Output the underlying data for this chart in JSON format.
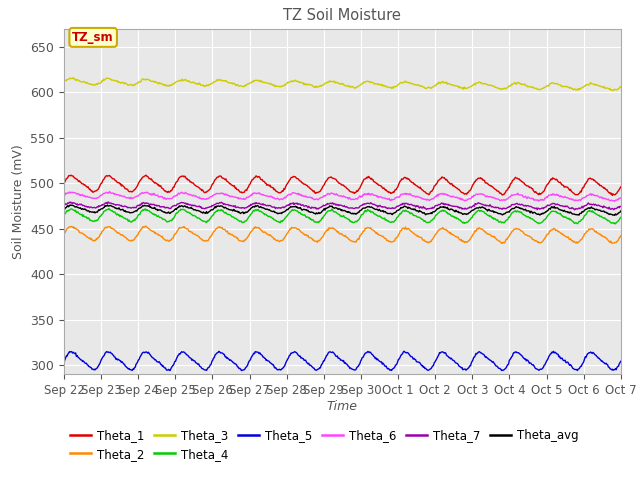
{
  "title": "TZ Soil Moisture",
  "ylabel": "Soil Moisture (mV)",
  "xlabel": "Time",
  "ylim": [
    290,
    670
  ],
  "yticks": [
    300,
    350,
    400,
    450,
    500,
    550,
    600,
    650
  ],
  "bg_color": "#e8e8e8",
  "annotation_text": "TZ_sm",
  "annotation_bg": "#ffffcc",
  "annotation_border": "#ccaa00",
  "annotation_text_color": "#cc0000",
  "series": {
    "Theta_1": {
      "color": "#dd0000",
      "base": 500,
      "amp": 8,
      "trend": -0.025
    },
    "Theta_2": {
      "color": "#ff8800",
      "base": 445,
      "amp": 7,
      "trend": -0.02
    },
    "Theta_3": {
      "color": "#cccc00",
      "base": 612,
      "amp": 3,
      "trend": -0.04
    },
    "Theta_4": {
      "color": "#00cc00",
      "base": 465,
      "amp": 6,
      "trend": -0.015
    },
    "Theta_5": {
      "color": "#0000dd",
      "base": 305,
      "amp": 9,
      "trend": -0.003
    },
    "Theta_6": {
      "color": "#ff44ff",
      "base": 487,
      "amp": 3,
      "trend": -0.018
    },
    "Theta_7": {
      "color": "#9900aa",
      "base": 476,
      "amp": 2.5,
      "trend": -0.01
    },
    "Theta_avg": {
      "color": "#000000",
      "base": 472,
      "amp": 3.5,
      "trend": -0.018
    }
  },
  "n_days": 15,
  "samples_per_day": 48,
  "x_tick_labels": [
    "Sep 22",
    "Sep 23",
    "Sep 24",
    "Sep 25",
    "Sep 26",
    "Sep 27",
    "Sep 28",
    "Sep 29",
    "Sep 30",
    "Oct 1",
    "Oct 2",
    "Oct 3",
    "Oct 4",
    "Oct 5",
    "Oct 6",
    "Oct 7"
  ],
  "legend_row1": [
    "Theta_1",
    "Theta_2",
    "Theta_3",
    "Theta_4",
    "Theta_5",
    "Theta_6"
  ],
  "legend_row2": [
    "Theta_7",
    "Theta_avg"
  ],
  "title_color": "#555555",
  "tick_color": "#555555",
  "font_size": 9
}
